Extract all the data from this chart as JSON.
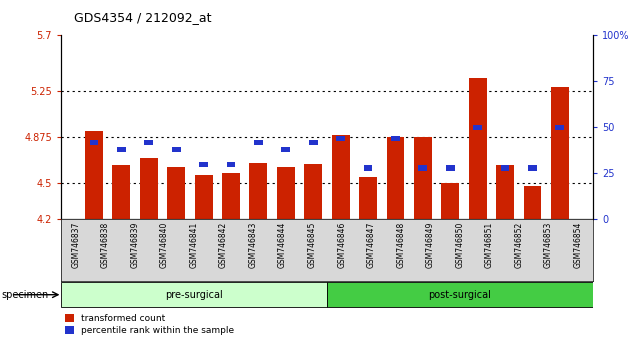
{
  "title": "GDS4354 / 212092_at",
  "samples": [
    "GSM746837",
    "GSM746838",
    "GSM746839",
    "GSM746840",
    "GSM746841",
    "GSM746842",
    "GSM746843",
    "GSM746844",
    "GSM746845",
    "GSM746846",
    "GSM746847",
    "GSM746848",
    "GSM746849",
    "GSM746850",
    "GSM746851",
    "GSM746852",
    "GSM746853",
    "GSM746854"
  ],
  "red_values": [
    4.92,
    4.64,
    4.7,
    4.63,
    4.56,
    4.58,
    4.66,
    4.63,
    4.65,
    4.89,
    4.55,
    4.87,
    4.87,
    4.5,
    5.35,
    4.64,
    4.47,
    5.28
  ],
  "blue_percentiles": [
    42,
    38,
    42,
    38,
    30,
    30,
    42,
    38,
    42,
    44,
    28,
    44,
    28,
    28,
    50,
    28,
    28,
    50
  ],
  "pre_surgical_count": 9,
  "ylim_left": [
    4.2,
    5.7
  ],
  "ylim_right": [
    0,
    100
  ],
  "yticks_left": [
    4.2,
    4.5,
    4.875,
    5.25,
    5.7
  ],
  "ytick_labels_left": [
    "4.2",
    "4.5",
    "4.875",
    "5.25",
    "5.7"
  ],
  "yticks_right": [
    0,
    25,
    50,
    75,
    100
  ],
  "ytick_labels_right": [
    "0",
    "25",
    "50",
    "75",
    "100%"
  ],
  "bar_color": "#cc2200",
  "blue_color": "#2233cc",
  "pre_surgical_color": "#ccffcc",
  "post_surgical_color": "#44cc44",
  "bg_gray": "#d8d8d8",
  "dotted_lines": [
    4.5,
    4.875,
    5.25
  ],
  "legend_red": "transformed count",
  "legend_blue": "percentile rank within the sample",
  "specimen_label": "specimen",
  "pre_label": "pre-surgical",
  "post_label": "post-surgical",
  "bar_width": 0.65
}
